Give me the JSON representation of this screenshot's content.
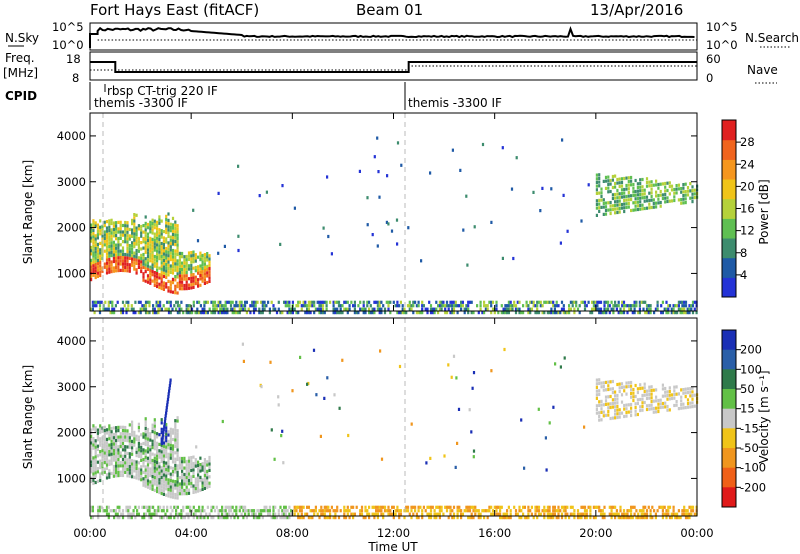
{
  "header": {
    "title": "Fort Hays East (fitACF)",
    "beam": "Beam 01",
    "date": "13/Apr/2016"
  },
  "strip_labels": {
    "nsky": "N.Sky",
    "nsearch": "N.Search",
    "freq_top": "Freq.",
    "freq_unit": "[MHz]",
    "nave": "Nave",
    "cpid": "CPID"
  },
  "strip_ticks": {
    "nsky_left": [
      "10^5",
      "10^0"
    ],
    "nsearch_right": [
      "10^5",
      "10^0"
    ],
    "freq_left": [
      "18",
      "8"
    ],
    "nave_right": [
      "60",
      "0"
    ]
  },
  "cpid_labels": [
    "rbsp CT-trig 220 IF",
    "themis -3300 IF",
    "themis -3300 IF"
  ],
  "colors": {
    "power": [
      "#2433d6",
      "#1f5aa6",
      "#3d8c6e",
      "#5fbf52",
      "#b5d13a",
      "#f0c419",
      "#f5961e",
      "#f0641e",
      "#e02020"
    ],
    "velocity": [
      "#1a2fb5",
      "#2a5fa8",
      "#2f7a4a",
      "#62c046",
      "#c8c8c8",
      "#f0c419",
      "#f0961e",
      "#f06018",
      "#e01a1a"
    ]
  },
  "chart_data": [
    {
      "type": "heatmap",
      "title": "",
      "xlabel": "",
      "ylabel": "Slant Range [km]",
      "xlim": [
        "00:00",
        "24:00"
      ],
      "ylim": [
        180,
        4500
      ],
      "x_ticks": [
        "00:00",
        "04:00",
        "08:00",
        "12:00",
        "16:00",
        "20:00",
        "00:00"
      ],
      "y_ticks": [
        "1000",
        "2000",
        "3000",
        "4000"
      ],
      "colorbar": {
        "label": "Power [dB]",
        "ticks": [
          "4",
          "8",
          "12",
          "16",
          "20",
          "24",
          "28"
        ],
        "range": [
          0,
          30
        ]
      },
      "regions": [
        {
          "t_start": "00:00",
          "t_end": "04:40",
          "range_km": [
            900,
            2200
          ],
          "value": "12-30 dB"
        },
        {
          "t_start": "00:00",
          "t_end": "24:00",
          "range_km": [
            180,
            450
          ],
          "value": "0-16 dB"
        },
        {
          "t_start": "20:00",
          "t_end": "24:00",
          "range_km": [
            2300,
            3300
          ],
          "value": "8-20 dB"
        }
      ]
    },
    {
      "type": "heatmap",
      "title": "",
      "xlabel": "Time UT",
      "ylabel": "Slant Range [km]",
      "xlim": [
        "00:00",
        "24:00"
      ],
      "ylim": [
        180,
        4500
      ],
      "x_ticks": [
        "00:00",
        "04:00",
        "08:00",
        "12:00",
        "16:00",
        "20:00",
        "00:00"
      ],
      "y_ticks": [
        "1000",
        "2000",
        "3000",
        "4000"
      ],
      "colorbar": {
        "label": "Velocity [m s⁻¹]",
        "ticks": [
          "200",
          "100",
          "50",
          "15",
          "-15",
          "-50",
          "-100",
          "-200"
        ],
        "range": [
          -250,
          250
        ]
      },
      "regions": [
        {
          "t_start": "00:00",
          "t_end": "04:40",
          "range_km": [
            900,
            2200
          ],
          "value": "-15 to 50 m/s"
        },
        {
          "t_start": "00:00",
          "t_end": "24:00",
          "range_km": [
            180,
            450
          ],
          "value": "-50 to 15 m/s"
        },
        {
          "t_start": "20:00",
          "t_end": "24:00",
          "range_km": [
            2300,
            3300
          ],
          "value": "-15 to 15 m/s"
        }
      ]
    }
  ]
}
